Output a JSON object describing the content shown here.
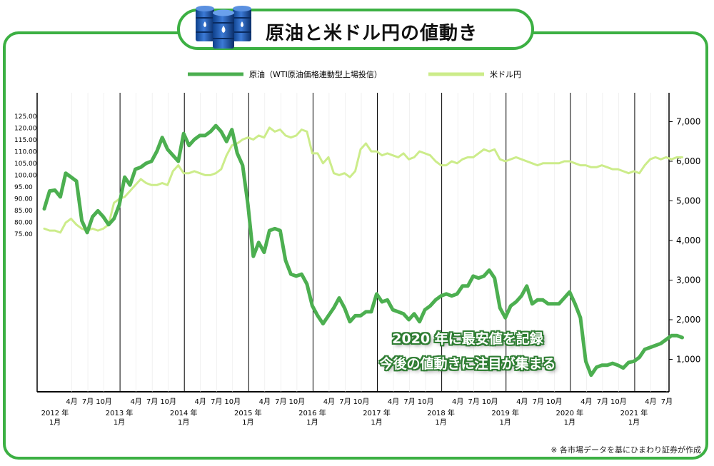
{
  "header": {
    "title": "原油と米ドル円の値動き",
    "icon": "oil-barrels-icon"
  },
  "callout": {
    "line1": "2020 年に最安値を記録",
    "line2": "今後の値動きに注目が集まる"
  },
  "footnote": "※ 各市場データを基にひまわり証券が作成",
  "colors": {
    "frame": "#3cb043",
    "oil": "#4caf50",
    "usdjpy": "#ccec8a",
    "callout_outline": "#2e7d32"
  },
  "chart_data": {
    "type": "line",
    "legend": {
      "placement": "top"
    },
    "grid": {
      "vertical": true,
      "horizontal": false
    },
    "left_axis": {
      "ticks": [
        75,
        80,
        85,
        90,
        95,
        100,
        105,
        110,
        115,
        120,
        125
      ],
      "tick_labels": [
        "75.00",
        "80.00",
        "85.00",
        "90.00",
        "95.00",
        "100.00",
        "105.00",
        "110.00",
        "115.00",
        "120.00",
        "125.00"
      ]
    },
    "right_axis": {
      "ticks": [
        1000,
        2000,
        3000,
        4000,
        5000,
        6000,
        7000
      ],
      "tick_labels": [
        "1,000",
        "2,000",
        "3,000",
        "4,000",
        "5,000",
        "6,000",
        "7,000"
      ]
    },
    "x_axis": {
      "start": "2012-01",
      "end": "2021-09",
      "year_labels": [
        {
          "month": "2012-01",
          "year": "2012 年",
          "sub": "1月"
        },
        {
          "month": "2013-01",
          "year": "2013 年",
          "sub": "1月"
        },
        {
          "month": "2014-01",
          "year": "2014 年",
          "sub": "1月"
        },
        {
          "month": "2015-01",
          "year": "2015 年",
          "sub": "1月"
        },
        {
          "month": "2016-01",
          "year": "2016 年",
          "sub": "1月"
        },
        {
          "month": "2017-01",
          "year": "2017 年",
          "sub": "1月"
        },
        {
          "month": "2018-01",
          "year": "2018 年",
          "sub": "1月"
        },
        {
          "month": "2019-01",
          "year": "2019 年",
          "sub": "1月"
        },
        {
          "month": "2020-01",
          "year": "2020 年",
          "sub": "1月"
        },
        {
          "month": "2021-01",
          "year": "2021 年",
          "sub": "1月"
        }
      ],
      "month_labels": [
        "4月",
        "7月",
        "10月"
      ]
    },
    "series": [
      {
        "name": "原油（WTI原油価格連動型上場投信）",
        "axis": "right",
        "values": [
          4800,
          5250,
          5270,
          5100,
          5700,
          5600,
          5500,
          4500,
          4200,
          4600,
          4750,
          4600,
          4400,
          4550,
          4900,
          5600,
          5400,
          5800,
          5850,
          5950,
          6000,
          6250,
          6600,
          6300,
          6150,
          6000,
          6700,
          6400,
          6550,
          6650,
          6650,
          6750,
          6900,
          6750,
          6500,
          6800,
          6200,
          5900,
          4900,
          3600,
          3950,
          3700,
          4250,
          4300,
          4250,
          3500,
          3150,
          3100,
          3150,
          2900,
          2350,
          2100,
          1900,
          2100,
          2300,
          2550,
          2300,
          1950,
          2100,
          2100,
          2200,
          2200,
          2650,
          2450,
          2500,
          2250,
          2200,
          2150,
          2000,
          2150,
          1950,
          2250,
          2350,
          2500,
          2600,
          2650,
          2600,
          2650,
          2850,
          2850,
          3100,
          3050,
          3100,
          3250,
          3050,
          2300,
          2050,
          2350,
          2450,
          2600,
          2850,
          2400,
          2500,
          2500,
          2400,
          2400,
          2400,
          2550,
          2700,
          2400,
          2050,
          950,
          600,
          800,
          850,
          850,
          900,
          850,
          780,
          920,
          950,
          1050,
          1250,
          1300,
          1350,
          1400,
          1500,
          1600,
          1600,
          1550
        ]
      },
      {
        "name": "米ドル円",
        "axis": "right",
        "values": [
          4300,
          4250,
          4250,
          4200,
          4450,
          4550,
          4400,
          4300,
          4250,
          4300,
          4250,
          4300,
          4400,
          4950,
          5050,
          5100,
          5250,
          5400,
          5550,
          5450,
          5400,
          5400,
          5450,
          5400,
          5750,
          5900,
          5700,
          5700,
          5750,
          5700,
          5650,
          5650,
          5700,
          5800,
          6150,
          6400,
          6450,
          6550,
          6600,
          6550,
          6650,
          6600,
          6850,
          6750,
          6800,
          6650,
          6600,
          6650,
          6800,
          6750,
          6200,
          6200,
          5950,
          6100,
          5700,
          5650,
          5700,
          5600,
          5750,
          6300,
          6450,
          6250,
          6250,
          6150,
          6200,
          6150,
          6100,
          6200,
          6050,
          6100,
          6250,
          6200,
          6150,
          6000,
          5900,
          5900,
          6000,
          5950,
          6050,
          6100,
          6100,
          6200,
          6300,
          6250,
          6300,
          6050,
          6000,
          6050,
          6100,
          6050,
          6000,
          5950,
          5900,
          5950,
          5950,
          5950,
          5950,
          6000,
          6000,
          5950,
          5900,
          5900,
          5850,
          5850,
          5900,
          5850,
          5800,
          5800,
          5750,
          5700,
          5750,
          5700,
          5900,
          6050,
          6100,
          6050,
          6100,
          6050,
          6100,
          6100
        ]
      }
    ]
  }
}
